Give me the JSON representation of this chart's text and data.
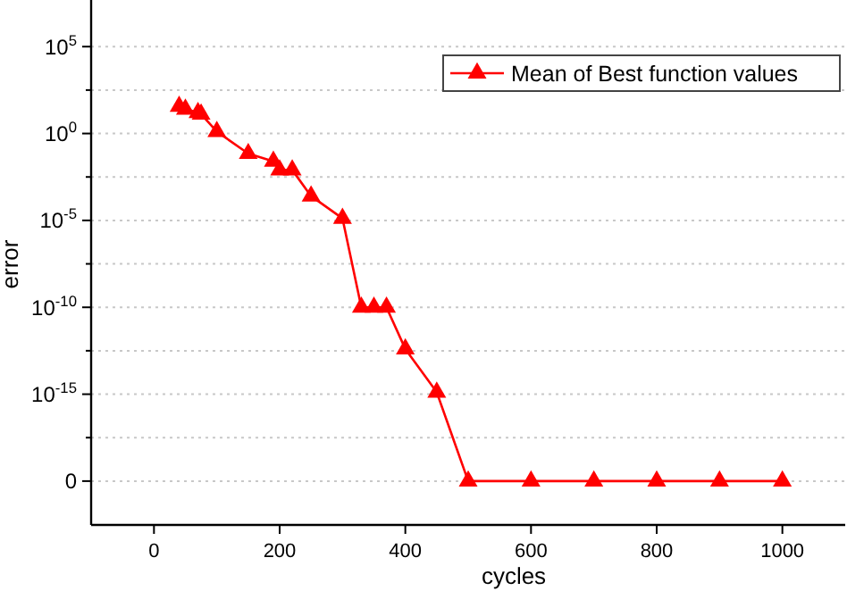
{
  "chart_data": {
    "type": "line",
    "xlabel": "cycles",
    "ylabel": "error",
    "log": "y",
    "grid": "y",
    "legend": "top right",
    "marker": "triangle",
    "line_style": "solid",
    "xlim": [
      -100,
      1100
    ],
    "xticks": [
      0,
      200,
      400,
      600,
      800,
      1000
    ],
    "ylim": [
      3e-23,
      30000000.0
    ],
    "yticks": [
      {
        "value": 1e-20,
        "label": "0"
      },
      {
        "value": 3.162e-18,
        "label": null
      },
      {
        "value": 1e-15,
        "label": "10$^{-15}$"
      },
      {
        "value": 3.162e-13,
        "label": null
      },
      {
        "value": 1e-10,
        "label": "10$^{-10}$"
      },
      {
        "value": 3.162e-08,
        "label": null
      },
      {
        "value": 1e-05,
        "label": "10$^{-5}$"
      },
      {
        "value": 0.003162,
        "label": null
      },
      {
        "value": 1,
        "label": "10$^{0}$"
      },
      {
        "value": 316.2,
        "label": null
      },
      {
        "value": 100000,
        "label": "10$^{5}$"
      }
    ],
    "x": [
      40,
      50,
      70,
      75,
      100,
      150,
      190,
      200,
      220,
      250,
      300,
      330,
      350,
      370,
      400,
      450,
      500,
      600,
      700,
      800,
      900,
      1000
    ],
    "series": [
      {
        "name": "Mean of Best function values",
        "color": "#ff0000",
        "values": [
          36,
          25,
          16,
          13,
          1.3,
          0.07,
          0.025,
          0.008,
          0.008,
          0.00025,
          1.3e-05,
          1e-10,
          1e-10,
          1e-10,
          4e-13,
          1.3e-15,
          1e-20,
          1e-20,
          1e-20,
          1e-20,
          1e-20,
          1e-20
        ]
      }
    ]
  }
}
